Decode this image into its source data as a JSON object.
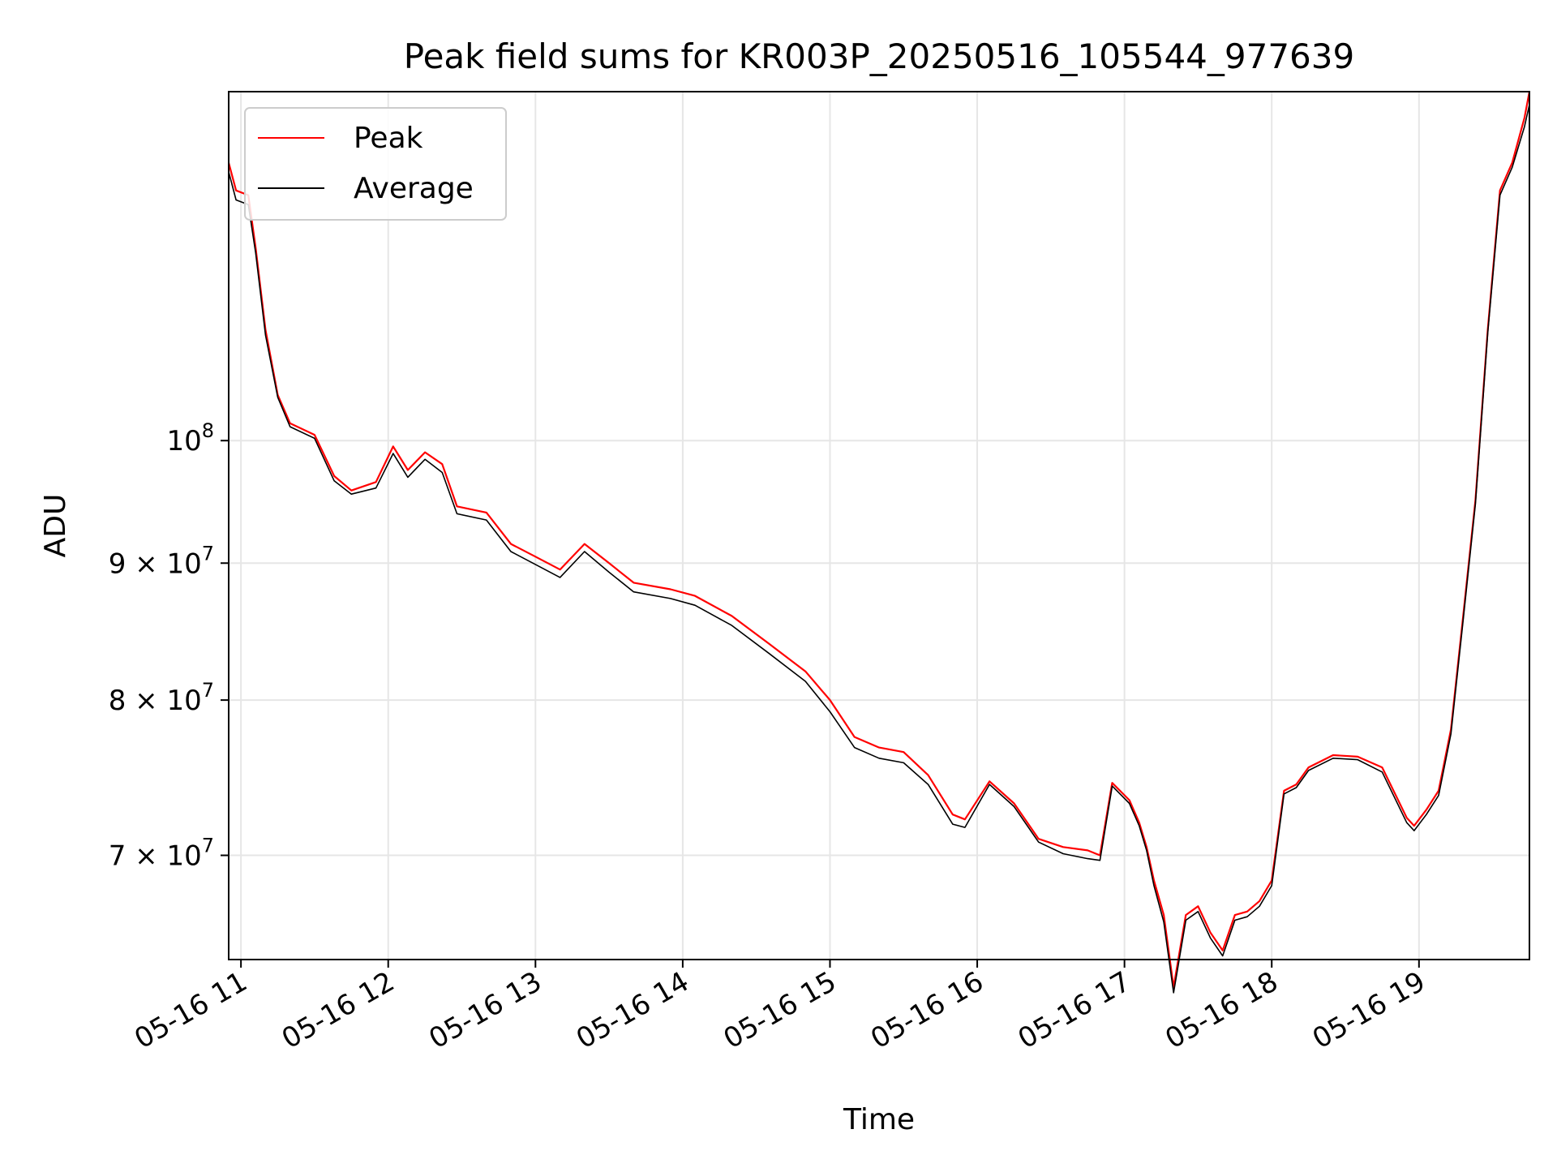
{
  "chart_data": {
    "type": "line",
    "title": "Peak field sums for KR003P_20250516_105544_977639",
    "xlabel": "Time",
    "ylabel": "ADU",
    "yscale": "log",
    "grid": true,
    "legend_position": "top-left",
    "xlim": [
      "2025-05-16 10:55",
      "2025-05-16 19:45"
    ],
    "ylim": [
      64000000,
      135000000
    ],
    "x_ticks": [
      "05-16 11",
      "05-16 12",
      "05-16 13",
      "05-16 14",
      "05-16 15",
      "05-16 16",
      "05-16 17",
      "05-16 18",
      "05-16 19"
    ],
    "y_ticks": [
      {
        "value": 100000000,
        "base": "10",
        "exp": "8"
      },
      {
        "value": 90000000,
        "base": "9 × 10",
        "exp": "7"
      },
      {
        "value": 80000000,
        "base": "8 × 10",
        "exp": "7"
      },
      {
        "value": 70000000,
        "base": "7 × 10",
        "exp": "7"
      }
    ],
    "series": [
      {
        "name": "Peak",
        "color": "#ff0000",
        "x": [
          "2025-05-16 10:55",
          "2025-05-16 10:58",
          "2025-05-16 11:03",
          "2025-05-16 11:06",
          "2025-05-16 11:10",
          "2025-05-16 11:15",
          "2025-05-16 11:20",
          "2025-05-16 11:30",
          "2025-05-16 11:38",
          "2025-05-16 11:45",
          "2025-05-16 11:55",
          "2025-05-16 12:02",
          "2025-05-16 12:08",
          "2025-05-16 12:15",
          "2025-05-16 12:22",
          "2025-05-16 12:28",
          "2025-05-16 12:40",
          "2025-05-16 12:50",
          "2025-05-16 13:00",
          "2025-05-16 13:10",
          "2025-05-16 13:20",
          "2025-05-16 13:30",
          "2025-05-16 13:40",
          "2025-05-16 13:55",
          "2025-05-16 14:05",
          "2025-05-16 14:20",
          "2025-05-16 14:35",
          "2025-05-16 14:50",
          "2025-05-16 15:00",
          "2025-05-16 15:10",
          "2025-05-16 15:20",
          "2025-05-16 15:30",
          "2025-05-16 15:40",
          "2025-05-16 15:50",
          "2025-05-16 15:55",
          "2025-05-16 16:05",
          "2025-05-16 16:15",
          "2025-05-16 16:25",
          "2025-05-16 16:35",
          "2025-05-16 16:45",
          "2025-05-16 16:50",
          "2025-05-16 16:55",
          "2025-05-16 17:02",
          "2025-05-16 17:06",
          "2025-05-16 17:09",
          "2025-05-16 17:12",
          "2025-05-16 17:16",
          "2025-05-16 17:20",
          "2025-05-16 17:25",
          "2025-05-16 17:30",
          "2025-05-16 17:35",
          "2025-05-16 17:40",
          "2025-05-16 17:45",
          "2025-05-16 17:50",
          "2025-05-16 17:55",
          "2025-05-16 18:00",
          "2025-05-16 18:05",
          "2025-05-16 18:10",
          "2025-05-16 18:15",
          "2025-05-16 18:25",
          "2025-05-16 18:35",
          "2025-05-16 18:45",
          "2025-05-16 18:55",
          "2025-05-16 18:58",
          "2025-05-16 19:03",
          "2025-05-16 19:08",
          "2025-05-16 19:13",
          "2025-05-16 19:18",
          "2025-05-16 19:23",
          "2025-05-16 19:28",
          "2025-05-16 19:33",
          "2025-05-16 19:38",
          "2025-05-16 19:43",
          "2025-05-16 19:45"
        ],
        "values": [
          127000000,
          124000000,
          123500000,
          118000000,
          110000000,
          104000000,
          101500000,
          100500000,
          97000000,
          95800000,
          96500000,
          99500000,
          97500000,
          99000000,
          98000000,
          94500000,
          94000000,
          91500000,
          90500000,
          89500000,
          91500000,
          90000000,
          88500000,
          88000000,
          87500000,
          86000000,
          84000000,
          82000000,
          80000000,
          77500000,
          76800000,
          76500000,
          75000000,
          72500000,
          72200000,
          74600000,
          73200000,
          71000000,
          70500000,
          70300000,
          70000000,
          74500000,
          73400000,
          72000000,
          70500000,
          68500000,
          66500000,
          62500000,
          66500000,
          67000000,
          65500000,
          64500000,
          66500000,
          66700000,
          67300000,
          68500000,
          74000000,
          74400000,
          75500000,
          76300000,
          76200000,
          75500000,
          72300000,
          71800000,
          72800000,
          74000000,
          78000000,
          86000000,
          95000000,
          110000000,
          124000000,
          127000000,
          132000000,
          135000000
        ]
      },
      {
        "name": "Average",
        "color": "#000000",
        "x": [
          "2025-05-16 10:55",
          "2025-05-16 10:58",
          "2025-05-16 11:03",
          "2025-05-16 11:06",
          "2025-05-16 11:10",
          "2025-05-16 11:15",
          "2025-05-16 11:20",
          "2025-05-16 11:30",
          "2025-05-16 11:38",
          "2025-05-16 11:45",
          "2025-05-16 11:55",
          "2025-05-16 12:02",
          "2025-05-16 12:08",
          "2025-05-16 12:15",
          "2025-05-16 12:22",
          "2025-05-16 12:28",
          "2025-05-16 12:40",
          "2025-05-16 12:50",
          "2025-05-16 13:00",
          "2025-05-16 13:10",
          "2025-05-16 13:20",
          "2025-05-16 13:30",
          "2025-05-16 13:40",
          "2025-05-16 13:55",
          "2025-05-16 14:05",
          "2025-05-16 14:20",
          "2025-05-16 14:35",
          "2025-05-16 14:50",
          "2025-05-16 15:00",
          "2025-05-16 15:10",
          "2025-05-16 15:20",
          "2025-05-16 15:30",
          "2025-05-16 15:40",
          "2025-05-16 15:50",
          "2025-05-16 15:55",
          "2025-05-16 16:05",
          "2025-05-16 16:15",
          "2025-05-16 16:25",
          "2025-05-16 16:35",
          "2025-05-16 16:45",
          "2025-05-16 16:50",
          "2025-05-16 16:55",
          "2025-05-16 17:02",
          "2025-05-16 17:06",
          "2025-05-16 17:09",
          "2025-05-16 17:12",
          "2025-05-16 17:16",
          "2025-05-16 17:20",
          "2025-05-16 17:25",
          "2025-05-16 17:30",
          "2025-05-16 17:35",
          "2025-05-16 17:40",
          "2025-05-16 17:45",
          "2025-05-16 17:50",
          "2025-05-16 17:55",
          "2025-05-16 18:00",
          "2025-05-16 18:05",
          "2025-05-16 18:10",
          "2025-05-16 18:15",
          "2025-05-16 18:25",
          "2025-05-16 18:35",
          "2025-05-16 18:45",
          "2025-05-16 18:55",
          "2025-05-16 18:58",
          "2025-05-16 19:03",
          "2025-05-16 19:08",
          "2025-05-16 19:13",
          "2025-05-16 19:18",
          "2025-05-16 19:23",
          "2025-05-16 19:28",
          "2025-05-16 19:33",
          "2025-05-16 19:38",
          "2025-05-16 19:43",
          "2025-05-16 19:45"
        ],
        "values": [
          126000000,
          123000000,
          122500000,
          117500000,
          109500000,
          103800000,
          101200000,
          100200000,
          96600000,
          95500000,
          96000000,
          98900000,
          96900000,
          98400000,
          97300000,
          93900000,
          93400000,
          90900000,
          89900000,
          88900000,
          90900000,
          89300000,
          87800000,
          87300000,
          86800000,
          85300000,
          83300000,
          81300000,
          79200000,
          76800000,
          76100000,
          75800000,
          74400000,
          71900000,
          71700000,
          74400000,
          73000000,
          70800000,
          70100000,
          69800000,
          69700000,
          74300000,
          73200000,
          71800000,
          70300000,
          68200000,
          66100000,
          62200000,
          66200000,
          66700000,
          65200000,
          64200000,
          66200000,
          66400000,
          67000000,
          68200000,
          73800000,
          74200000,
          75300000,
          76100000,
          76000000,
          75200000,
          72000000,
          71500000,
          72500000,
          73700000,
          77700000,
          85700000,
          94700000,
          109700000,
          123500000,
          126500000,
          131000000,
          133500000
        ]
      }
    ]
  }
}
